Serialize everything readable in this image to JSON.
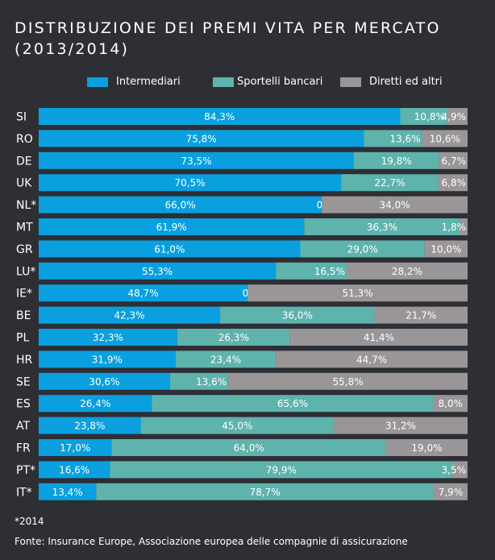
{
  "title_line1": "DISTRIBUZIONE DEI PREMI VITA PER MERCATO",
  "title_line2": "(2013/2014)",
  "legend": [
    {
      "label": "Intermediari",
      "color": "#0aa0e0"
    },
    {
      "label": "Sportelli bancari",
      "color": "#5fb3ad"
    },
    {
      "label": "Diretti ed altri",
      "color": "#9a9698"
    }
  ],
  "footnote": "*2014",
  "source": "Fonte: Insurance Europe, Associazione europea delle compagnie di assicurazione",
  "chart_data": {
    "type": "bar",
    "orientation": "horizontal",
    "stacked": true,
    "categories": [
      "SI",
      "RO",
      "DE",
      "UK",
      "NL*",
      "MT",
      "GR",
      "LU*",
      "IE*",
      "BE",
      "PL",
      "HR",
      "SE",
      "ES",
      "AT",
      "FR",
      "PT*",
      "IT*"
    ],
    "series": [
      {
        "name": "Intermediari",
        "color": "#0aa0e0",
        "values": [
          84.3,
          75.8,
          73.5,
          70.5,
          66.0,
          61.9,
          61.0,
          55.3,
          48.7,
          42.3,
          32.3,
          31.9,
          30.6,
          26.4,
          23.8,
          17.0,
          16.6,
          13.4
        ],
        "labels": [
          "84,3%",
          "75,8%",
          "73,5%",
          "70,5%",
          "66,0%",
          "61,9%",
          "61,0%",
          "55,3%",
          "48,7%",
          "42,3%",
          "32,3%",
          "31,9%",
          "30,6%",
          "26,4%",
          "23,8%",
          "17,0%",
          "16,6%",
          "13,4%"
        ]
      },
      {
        "name": "Sportelli bancari",
        "color": "#5fb3ad",
        "values": [
          10.8,
          13.6,
          19.8,
          22.7,
          0.0,
          36.3,
          29.0,
          16.5,
          0.0,
          36.0,
          26.3,
          23.4,
          13.6,
          65.6,
          45.0,
          64.0,
          79.9,
          78.7
        ],
        "labels": [
          "10,8%",
          "13,6%",
          "19,8%",
          "22,7%",
          "0,0%",
          "36,3%",
          "29,0%",
          "16,5%",
          "0,0%",
          "36,0%",
          "26,3%",
          "23,4%",
          "13,6%",
          "65,6%",
          "45,0%",
          "64,0%",
          "79,9%",
          "78,7%"
        ]
      },
      {
        "name": "Diretti ed altri",
        "color": "#9a9698",
        "values": [
          4.9,
          10.6,
          6.7,
          6.8,
          34.0,
          1.8,
          10.0,
          28.2,
          51.3,
          21.7,
          41.4,
          44.7,
          55.8,
          8.0,
          31.2,
          19.0,
          3.5,
          7.9
        ],
        "labels": [
          "4,9%",
          "10,6%",
          "6,7%",
          "6,8%",
          "34,0%",
          "1,8%",
          "10,0%",
          "28,2%",
          "51,3%",
          "21,7%",
          "41,4%",
          "44,7%",
          "55,8%",
          "8,0%",
          "31,2%",
          "19,0%",
          "3,5%",
          "7,9%"
        ]
      }
    ],
    "xlim": [
      0,
      100
    ],
    "legend_position": "top"
  }
}
